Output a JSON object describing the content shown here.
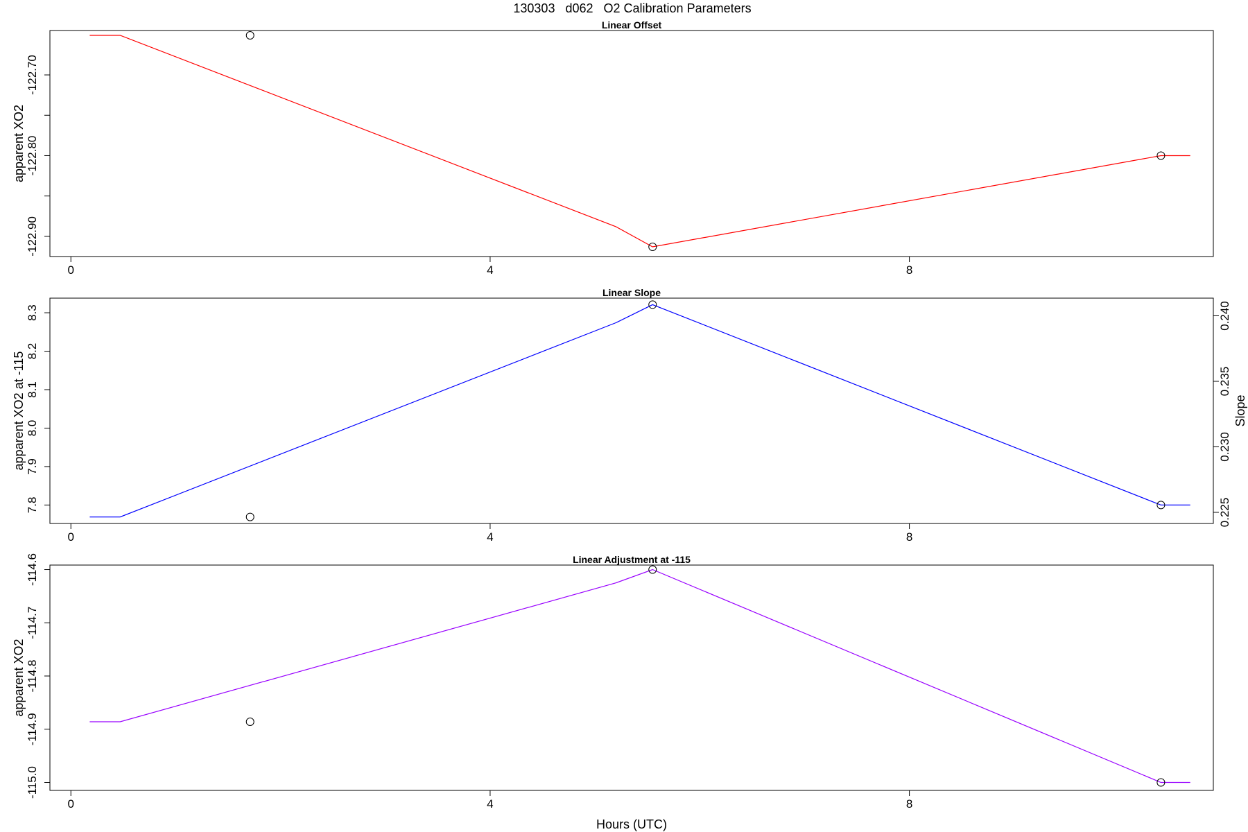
{
  "figure": {
    "title": "130303   d062   O2 Calibration Parameters"
  },
  "chart_data": [
    {
      "type": "line",
      "title": "Linear Offset",
      "xlabel": "",
      "ylabel": "apparent XO2",
      "xlim": [
        -0.2,
        10.9
      ],
      "ylim": [
        -122.925,
        -122.645
      ],
      "xticks": [
        0,
        4,
        8
      ],
      "xtick_labels": [
        "0",
        "4",
        "8"
      ],
      "yticks": [
        -122.9,
        -122.85,
        -122.8,
        -122.75,
        -122.7
      ],
      "ytick_labels": [
        "-122.90",
        "",
        "-122.80",
        "",
        "-122.70"
      ],
      "grid": false,
      "series": [
        {
          "color": "#ff0000",
          "x": [
            0.18,
            0.47,
            5.2,
            5.55,
            10.4,
            10.68
          ],
          "y": [
            -122.651,
            -122.651,
            -122.888,
            -122.913,
            -122.8,
            -122.8
          ]
        }
      ],
      "points": {
        "x": [
          1.71,
          5.55,
          10.4
        ],
        "y": [
          -122.651,
          -122.913,
          -122.8
        ]
      }
    },
    {
      "type": "line",
      "title": "Linear Slope",
      "xlabel": "",
      "ylabel": "apparent XO2 at -115",
      "ylabel_right": "Slope",
      "xlim": [
        -0.2,
        10.9
      ],
      "ylim": [
        7.752,
        8.338
      ],
      "xticks": [
        0,
        4,
        8
      ],
      "xtick_labels": [
        "0",
        "4",
        "8"
      ],
      "yticks": [
        7.8,
        7.9,
        8.0,
        8.1,
        8.2,
        8.3
      ],
      "ytick_labels": [
        "7.8",
        "7.9",
        "8.0",
        "8.1",
        "8.2",
        "8.3"
      ],
      "y2lim": [
        0.22415,
        0.24135
      ],
      "y2ticks": [
        0.225,
        0.23,
        0.235,
        0.24
      ],
      "y2tick_labels": [
        "0.225",
        "0.230",
        "0.235",
        "0.240"
      ],
      "grid": false,
      "series": [
        {
          "color": "#0000ff",
          "x": [
            0.18,
            0.47,
            5.2,
            5.55,
            10.4,
            10.68
          ],
          "y": [
            7.769,
            7.769,
            8.274,
            8.321,
            7.8,
            7.8
          ]
        }
      ],
      "points": {
        "x": [
          1.71,
          5.55,
          10.4
        ],
        "y": [
          7.769,
          8.321,
          7.8
        ]
      }
    },
    {
      "type": "line",
      "title": "Linear Adjustment at -115",
      "xlabel": "Hours (UTC)",
      "ylabel": "apparent XO2",
      "xlim": [
        -0.2,
        10.9
      ],
      "ylim": [
        -115.015,
        -114.5915
      ],
      "xticks": [
        0,
        4,
        8
      ],
      "xtick_labels": [
        "0",
        "4",
        "8"
      ],
      "yticks": [
        -115.0,
        -114.9,
        -114.8,
        -114.7,
        -114.6
      ],
      "ytick_labels": [
        "-115.0",
        "-114.9",
        "-114.8",
        "-114.7",
        "-114.6"
      ],
      "grid": false,
      "series": [
        {
          "color": "#9900ff",
          "x": [
            0.18,
            0.47,
            5.2,
            5.55,
            10.4,
            10.68
          ],
          "y": [
            -114.886,
            -114.886,
            -114.625,
            -114.6,
            -115.0,
            -115.0
          ]
        }
      ],
      "points": {
        "x": [
          1.71,
          5.55,
          10.4
        ],
        "y": [
          -114.886,
          -114.6,
          -115.0
        ]
      }
    }
  ]
}
